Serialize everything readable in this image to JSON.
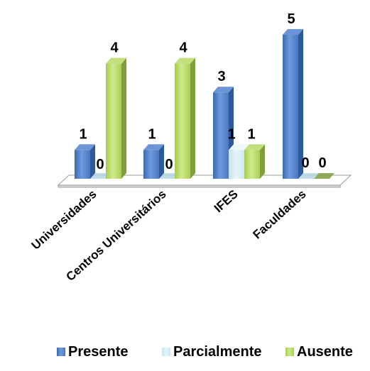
{
  "chart_data": {
    "type": "bar",
    "categories": [
      "Universidades",
      "Centros Universitários",
      "IFES",
      "Faculdades"
    ],
    "series": [
      {
        "name": "Presente",
        "values": [
          1,
          1,
          3,
          5
        ],
        "color": "#4F81BD"
      },
      {
        "name": "Parcialmente",
        "values": [
          0,
          0,
          1,
          0
        ],
        "color": "#DBEEF4"
      },
      {
        "name": "Ausente",
        "values": [
          4,
          4,
          1,
          0
        ],
        "color": "#9BBB59"
      }
    ],
    "ylim": [
      0,
      5
    ],
    "grid": false,
    "legend_position": "bottom",
    "three_d": true,
    "value_labels": true
  }
}
